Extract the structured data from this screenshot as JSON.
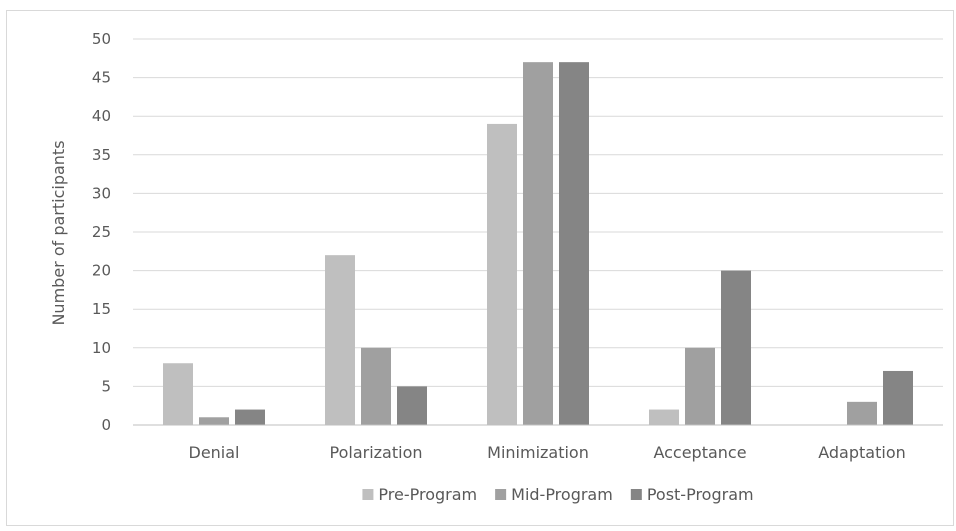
{
  "chart_data": {
    "type": "bar",
    "title": "",
    "xlabel": "",
    "ylabel": "Number of participants",
    "ylim": [
      0,
      50
    ],
    "yticks": [
      0,
      5,
      10,
      15,
      20,
      25,
      30,
      35,
      40,
      45,
      50
    ],
    "grid": true,
    "legend_position": "bottom",
    "categories": [
      "Denial",
      "Polarization",
      "Minimization",
      "Acceptance",
      "Adaptation"
    ],
    "series": [
      {
        "name": "Pre-Program",
        "color": "#bfbfbf",
        "values": [
          8,
          22,
          39,
          2,
          0
        ]
      },
      {
        "name": "Mid-Program",
        "color": "#a0a0a0",
        "values": [
          1,
          10,
          47,
          10,
          3
        ]
      },
      {
        "name": "Post-Program",
        "color": "#858585",
        "values": [
          2,
          5,
          47,
          20,
          7
        ]
      }
    ]
  }
}
